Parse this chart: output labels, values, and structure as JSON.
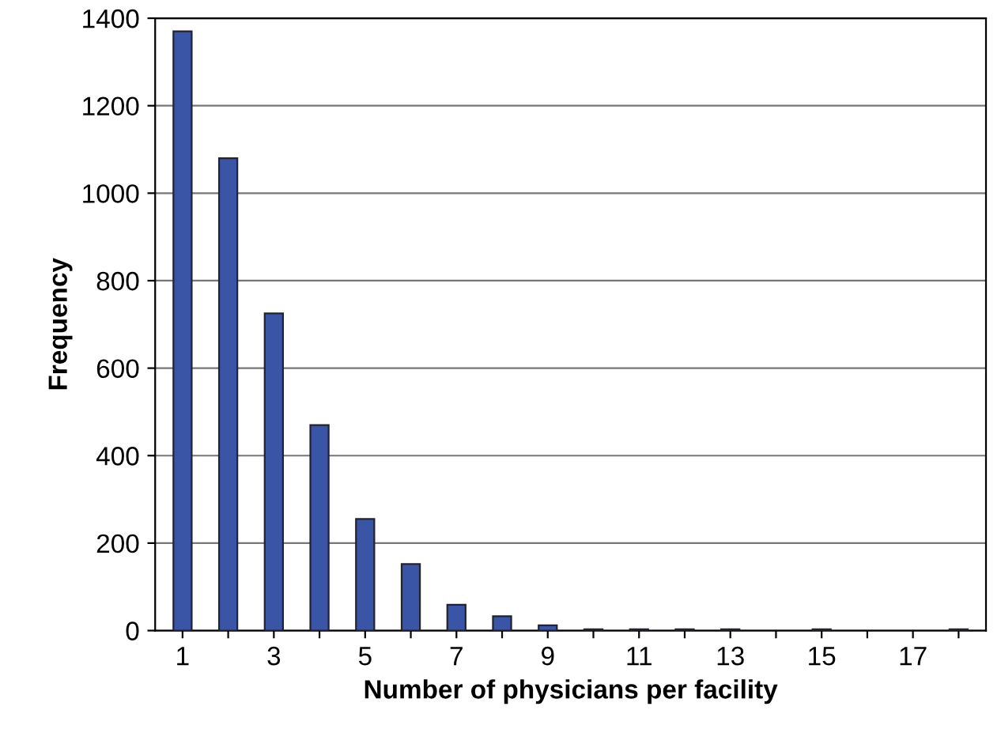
{
  "chart_data": {
    "type": "bar",
    "xlabel": "Number of physicians per facility",
    "ylabel": "Frequency",
    "categories": [
      "1",
      null,
      "3",
      null,
      "5",
      null,
      "7",
      null,
      "9",
      null,
      "11",
      null,
      "13",
      null,
      "15",
      null,
      "17",
      null
    ],
    "values": [
      1370,
      1080,
      725,
      470,
      255,
      152,
      59,
      33,
      12,
      3,
      3,
      3,
      3,
      null,
      3,
      null,
      null,
      3
    ],
    "color": "#3a55a6",
    "ylim": [
      0,
      1400
    ],
    "yticks": [
      0,
      200,
      400,
      600,
      800,
      1000,
      1200,
      1400
    ],
    "grid": "y",
    "legend": false
  }
}
